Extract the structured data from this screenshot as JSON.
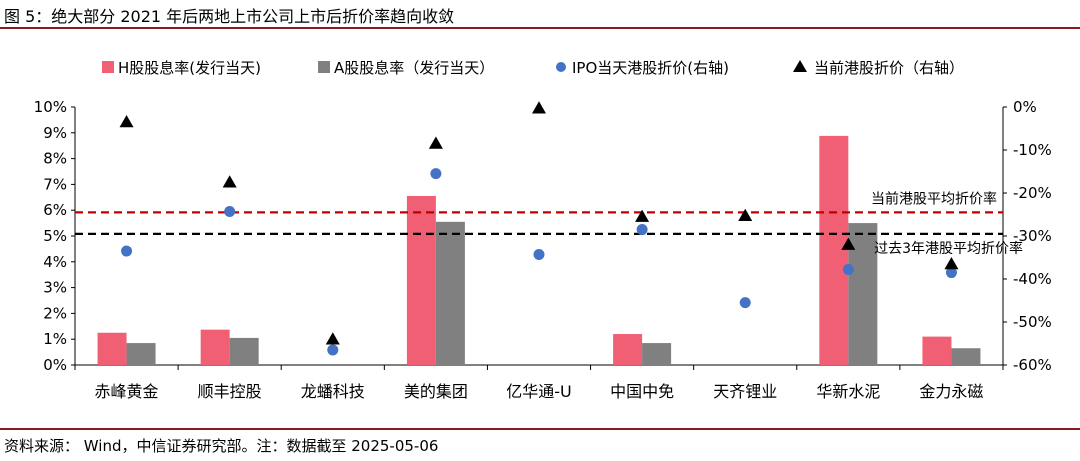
{
  "figure": {
    "title": "图 5：绝大部分 2021 年后两地上市公司上市后折价率趋向收敛",
    "source": "资料来源： Wind，中信证券研究部。注：数据截至 2025-05-06"
  },
  "colors": {
    "h_bar": "#f05f74",
    "a_bar": "#808080",
    "ipo_dot": "#4472c4",
    "current_tri": "#000000",
    "avg_current_line": "#c00000",
    "avg_past_line": "#000000",
    "rule": "#8b1a1a"
  },
  "chart_data": {
    "type": "bar",
    "categories": [
      "赤峰黄金",
      "顺丰控股",
      "龙蟠科技",
      "美的集团",
      "亿华通-U",
      "中国中免",
      "天齐锂业",
      "华新水泥",
      "金力永磁"
    ],
    "series": [
      {
        "name": "H股股息率(发行当天)",
        "kind": "bar",
        "axis": "left",
        "values": [
          1.25,
          1.37,
          null,
          6.55,
          null,
          1.2,
          null,
          8.88,
          1.1
        ]
      },
      {
        "name": "A股股息率（发行当天）",
        "kind": "bar",
        "axis": "left",
        "values": [
          0.85,
          1.05,
          null,
          5.55,
          null,
          0.85,
          null,
          5.5,
          0.65
        ]
      },
      {
        "name": "IPO当天港股折价(右轴)",
        "kind": "scatter",
        "marker": "circle",
        "axis": "right",
        "values": [
          -33.5,
          -24.3,
          -56.5,
          -15.5,
          -34.3,
          -28.5,
          -45.5,
          -37.8,
          -38.5
        ]
      },
      {
        "name": "当前港股折价（右轴）",
        "kind": "scatter",
        "marker": "triangle",
        "axis": "right",
        "values": [
          -3.5,
          -17.5,
          -54.0,
          -8.5,
          -0.3,
          -25.5,
          -25.3,
          -32.0,
          -36.5
        ]
      }
    ],
    "left_axis": {
      "min": 0,
      "max": 10,
      "step": 1,
      "ticks": [
        "0%",
        "1%",
        "2%",
        "3%",
        "4%",
        "5%",
        "6%",
        "7%",
        "8%",
        "9%",
        "10%"
      ]
    },
    "right_axis": {
      "min": -60,
      "max": 0,
      "step": 10,
      "ticks": [
        "-60%",
        "-50%",
        "-40%",
        "-30%",
        "-20%",
        "-10%",
        "0%"
      ]
    },
    "reference_lines": [
      {
        "label": "当前港股平均折价率",
        "axis": "right",
        "value": -24.5,
        "style": "dashed"
      },
      {
        "label": "过去3年港股平均折价率",
        "axis": "right",
        "value": -29.5,
        "style": "dashed"
      }
    ],
    "legend_position": "top",
    "grid": false
  }
}
